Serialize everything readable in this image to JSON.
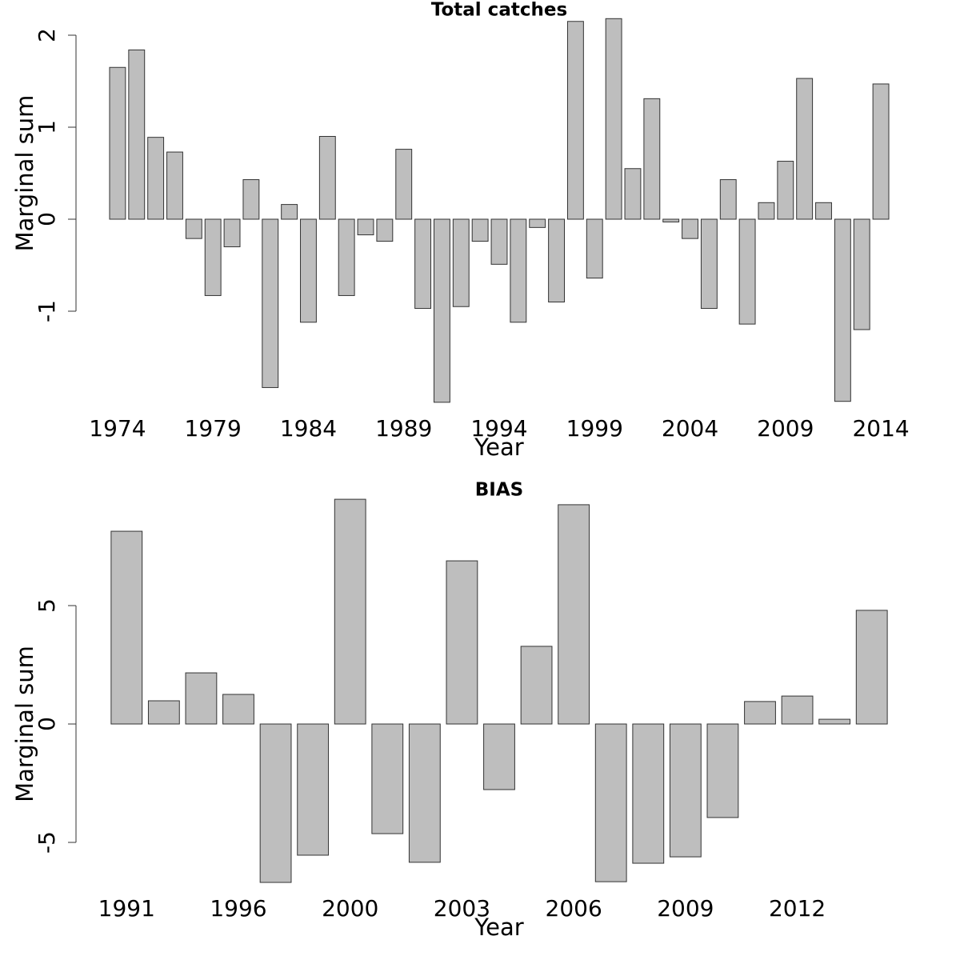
{
  "chart_data": [
    {
      "type": "bar",
      "title": "Total catches",
      "xlabel": "Year",
      "ylabel": "Marginal sum",
      "categories": [
        "1974",
        null,
        null,
        null,
        null,
        "1979",
        null,
        null,
        null,
        null,
        "1984",
        null,
        null,
        null,
        null,
        "1989",
        null,
        null,
        null,
        null,
        "1994",
        null,
        null,
        null,
        null,
        "1999",
        null,
        null,
        null,
        null,
        "2004",
        null,
        null,
        null,
        null,
        "2009",
        null,
        null,
        null,
        null,
        "2014"
      ],
      "values": [
        1.65,
        1.84,
        0.89,
        0.73,
        -0.21,
        -0.83,
        -0.3,
        0.43,
        -1.83,
        0.16,
        -1.12,
        0.9,
        -0.83,
        -0.17,
        -0.24,
        0.76,
        -0.97,
        -1.99,
        -0.95,
        -0.24,
        -0.49,
        -1.12,
        -0.09,
        -0.9,
        2.15,
        -0.64,
        2.18,
        0.55,
        1.31,
        -0.03,
        -0.21,
        -0.97,
        0.43,
        -1.14,
        0.18,
        0.63,
        1.53,
        0.18,
        -1.98,
        -1.2,
        1.47
      ],
      "color": "#bebebe",
      "ylim": [
        -2.1,
        2.3
      ],
      "yticks": [
        -1,
        0,
        1,
        2
      ]
    },
    {
      "type": "bar",
      "title": "BIAS",
      "xlabel": "Year",
      "ylabel": "Marginal sum",
      "categories": [
        "1991",
        null,
        null,
        "1996",
        null,
        null,
        "2000",
        null,
        null,
        "2003",
        null,
        null,
        "2006",
        null,
        null,
        "2009",
        null,
        null,
        "2012",
        null,
        null
      ],
      "values": [
        8.14,
        0.98,
        2.16,
        1.25,
        -6.69,
        -5.54,
        9.49,
        -4.63,
        -5.84,
        6.89,
        -2.77,
        3.28,
        9.26,
        -6.66,
        -5.88,
        -5.61,
        -3.95,
        0.95,
        1.18,
        0.2,
        4.8
      ],
      "color": "#bebebe",
      "ylim": [
        -7,
        10
      ],
      "yticks": [
        -5,
        0,
        5
      ]
    }
  ]
}
